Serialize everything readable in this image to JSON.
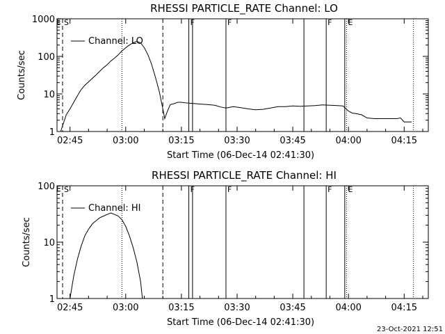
{
  "chart_data": [
    {
      "type": "line",
      "title": "RHESSI PARTICLE_RATE Channel: LO",
      "xlabel": "Start Time (06-Dec-14 02:41:30)",
      "ylabel": "Counts/sec",
      "yscale": "log",
      "ylim": [
        1,
        1000
      ],
      "xlim": [
        "02:41:30",
        "04:21:30"
      ],
      "x_ticks": [
        "02:45",
        "03:00",
        "03:15",
        "03:30",
        "03:45",
        "04:00",
        "04:15"
      ],
      "y_ticks": [
        "1",
        "10",
        "100",
        "1000"
      ],
      "grid": false,
      "legend": {
        "position": "top-left",
        "entries": [
          "Channel: LO"
        ]
      },
      "series": [
        {
          "name": "Channel: LO",
          "x": [
            "02:42:30",
            "02:43:30",
            "02:44:00",
            "02:45:00",
            "02:46:00",
            "02:47:00",
            "02:48:00",
            "02:49:00",
            "02:50:00",
            "02:51:00",
            "02:52:00",
            "02:53:00",
            "02:54:00",
            "02:55:00",
            "02:56:00",
            "02:57:00",
            "02:58:00",
            "02:59:00",
            "03:00:00",
            "03:01:00",
            "03:02:00",
            "03:03:00",
            "03:04:00",
            "03:05:00",
            "03:06:00",
            "03:07:00",
            "03:08:00",
            "03:09:00",
            "03:10:00",
            "03:10:30",
            "03:11:00",
            "03:11:30",
            "03:12:00",
            "03:13:00",
            "03:14:00",
            "03:15:00",
            "03:16:00",
            "03:18:00",
            "03:20:00",
            "03:22:00",
            "03:24:00",
            "03:25:30",
            "03:27:00",
            "03:29:00",
            "03:31:00",
            "03:33:00",
            "03:35:00",
            "03:37:00",
            "03:39:00",
            "03:41:00",
            "03:43:00",
            "03:45:00",
            "03:47:00",
            "03:49:00",
            "03:51:00",
            "03:53:00",
            "03:55:00",
            "03:57:00",
            "03:58:30",
            "04:00:00",
            "04:01:00",
            "04:02:00",
            "04:03:30",
            "04:05:00",
            "04:07:00",
            "04:09:00",
            "04:11:00",
            "04:13:00",
            "04:14:00",
            "04:15:00",
            "04:17:00"
          ],
          "values": [
            1.0,
            2.0,
            2.8,
            4.0,
            6.0,
            9.0,
            13,
            17,
            21,
            26,
            32,
            40,
            50,
            60,
            75,
            90,
            110,
            140,
            170,
            200,
            230,
            250,
            230,
            170,
            110,
            60,
            28,
            12,
            4,
            2.2,
            3.0,
            4.0,
            5.2,
            5.5,
            6.0,
            6.0,
            5.8,
            5.6,
            5.4,
            5.2,
            5.0,
            4.5,
            4.2,
            4.6,
            4.3,
            4.0,
            3.8,
            3.9,
            4.2,
            4.6,
            4.6,
            4.8,
            4.7,
            4.8,
            4.9,
            5.1,
            5.0,
            4.9,
            4.8,
            3.5,
            3.1,
            3.0,
            2.8,
            2.3,
            2.2,
            2.2,
            2.2,
            2.2,
            2.3,
            1.8,
            1.8
          ]
        }
      ],
      "markers": [
        {
          "label": "S",
          "x": "02:43:00",
          "style": "dashed"
        },
        {
          "label": "",
          "x": "03:10:00",
          "style": "dashed"
        },
        {
          "label": "",
          "x": "02:59:00",
          "style": "dotted"
        },
        {
          "label": "",
          "x": "03:59:30",
          "style": "dotted"
        },
        {
          "label": "",
          "x": "04:17:30",
          "style": "dotted"
        },
        {
          "label": "F",
          "x": "03:17:00",
          "style": "solid"
        },
        {
          "label": "",
          "x": "03:18:00",
          "style": "solid"
        },
        {
          "label": "F",
          "x": "03:27:00",
          "style": "solid"
        },
        {
          "label": "",
          "x": "03:48:00",
          "style": "solid"
        },
        {
          "label": "F",
          "x": "03:54:00",
          "style": "solid"
        },
        {
          "label": "",
          "x": "03:59:00",
          "style": "solid"
        },
        {
          "label": "E",
          "x": "03:59:30",
          "style": "none"
        }
      ],
      "corner_label": "E"
    },
    {
      "type": "line",
      "title": "RHESSI PARTICLE_RATE Channel: HI",
      "xlabel": "Start Time (06-Dec-14 02:41:30)",
      "ylabel": "Counts/sec",
      "yscale": "log",
      "ylim": [
        1,
        100
      ],
      "xlim": [
        "02:41:30",
        "04:21:30"
      ],
      "x_ticks": [
        "02:45",
        "03:00",
        "03:15",
        "03:30",
        "03:45",
        "04:00",
        "04:15"
      ],
      "y_ticks": [
        "1",
        "10",
        "100"
      ],
      "grid": false,
      "legend": {
        "position": "top-left",
        "entries": [
          "Channel: HI"
        ]
      },
      "series": [
        {
          "name": "Channel: HI",
          "x": [
            "02:45:00",
            "02:46:00",
            "02:47:00",
            "02:48:00",
            "02:49:00",
            "02:50:00",
            "02:51:00",
            "02:52:00",
            "02:53:00",
            "02:54:00",
            "02:55:00",
            "02:56:00",
            "02:57:00",
            "02:58:00",
            "02:59:00",
            "03:00:00",
            "03:01:00",
            "03:02:00",
            "03:03:00",
            "03:04:00",
            "03:04:30"
          ],
          "values": [
            1.0,
            2.5,
            5.0,
            8.5,
            13,
            17,
            21,
            24,
            27,
            29,
            31,
            33,
            31,
            29,
            25,
            19,
            13,
            8,
            4.5,
            2.0,
            1.0
          ]
        }
      ],
      "markers": [
        {
          "label": "S",
          "x": "02:43:00",
          "style": "dashed"
        },
        {
          "label": "",
          "x": "03:10:00",
          "style": "dashed"
        },
        {
          "label": "",
          "x": "02:59:00",
          "style": "dotted"
        },
        {
          "label": "",
          "x": "03:59:30",
          "style": "dotted"
        },
        {
          "label": "",
          "x": "04:17:30",
          "style": "dotted"
        },
        {
          "label": "F",
          "x": "03:17:00",
          "style": "solid"
        },
        {
          "label": "",
          "x": "03:18:00",
          "style": "solid"
        },
        {
          "label": "F",
          "x": "03:27:00",
          "style": "solid"
        },
        {
          "label": "",
          "x": "03:48:00",
          "style": "solid"
        },
        {
          "label": "F",
          "x": "03:54:00",
          "style": "solid"
        },
        {
          "label": "",
          "x": "03:59:00",
          "style": "solid"
        },
        {
          "label": "E",
          "x": "03:59:30",
          "style": "none"
        }
      ],
      "corner_label": "E"
    }
  ],
  "footer": {
    "timestamp": "23-Oct-2021 12:51"
  }
}
